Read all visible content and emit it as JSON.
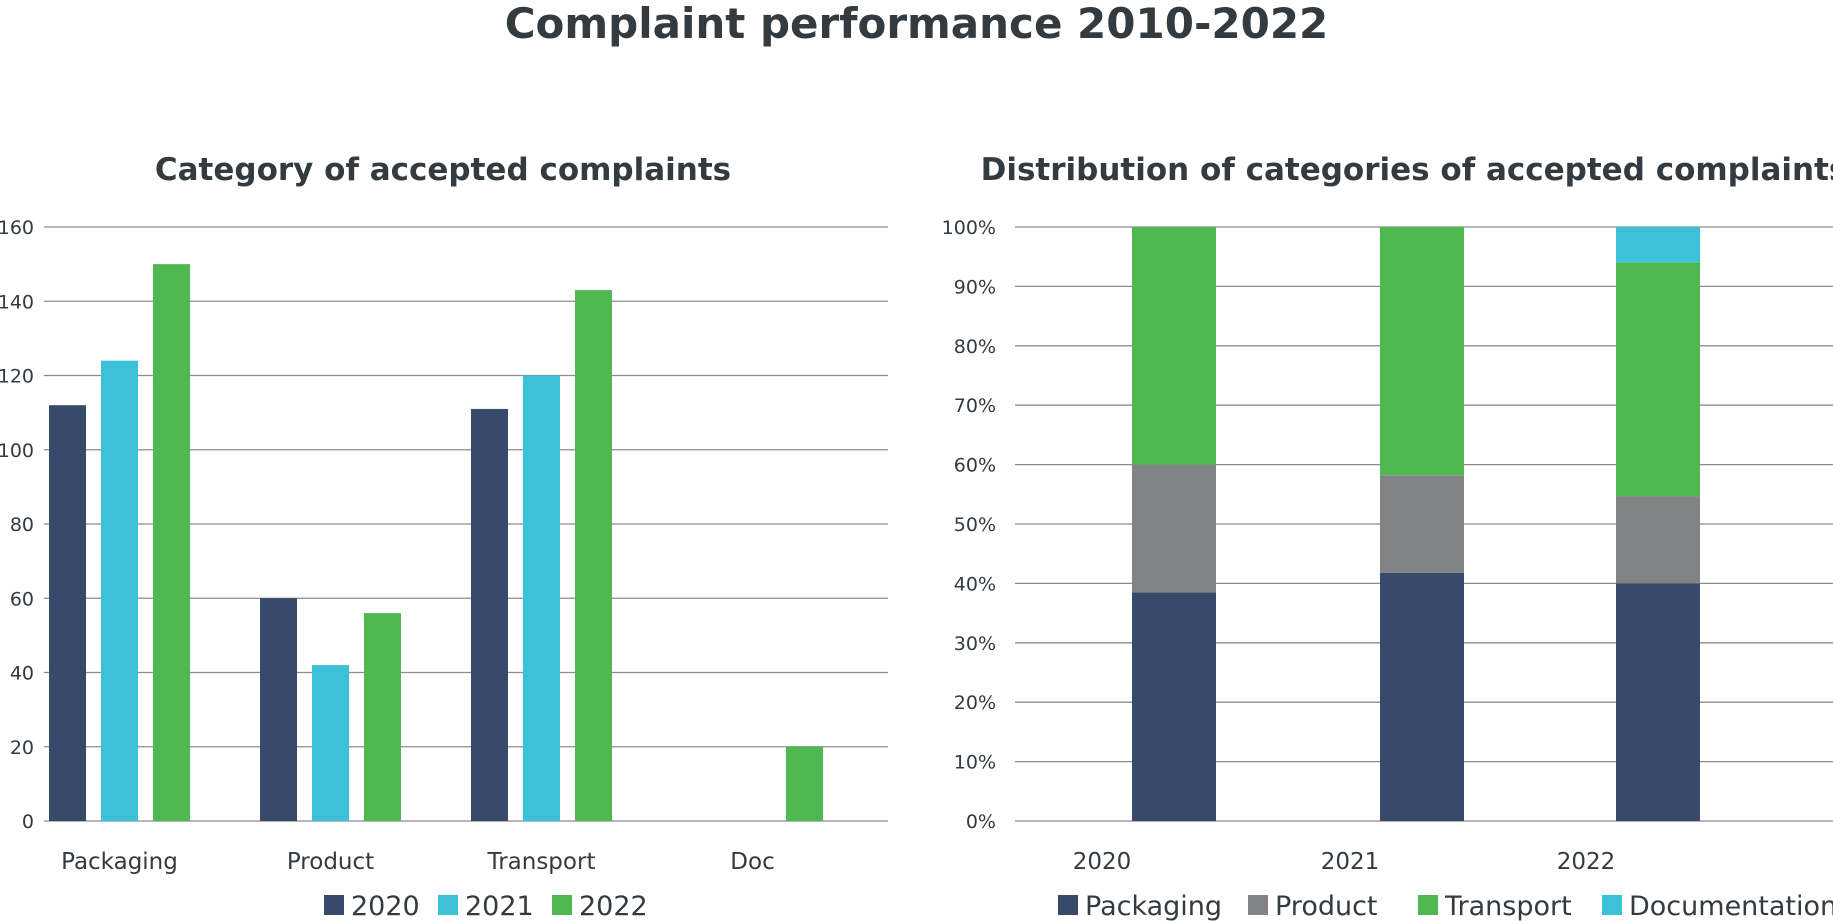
{
  "title": "Complaint performance 2010-2022",
  "colors": {
    "packaging_2020": "#384a69",
    "year2021": "#3bc1d8",
    "year2022": "#50b850",
    "product": "#828385",
    "grid": "#8c8c8c",
    "text": "#333b40"
  },
  "chart_data": [
    {
      "type": "bar",
      "title": "Category of accepted complaints",
      "categories": [
        "Packaging",
        "Product",
        "Transport",
        "Doc"
      ],
      "series": [
        {
          "name": "2020",
          "color": "#384a69",
          "values": [
            112,
            60,
            111,
            0
          ]
        },
        {
          "name": "2021",
          "color": "#3bc1d8",
          "values": [
            124,
            42,
            120,
            0
          ]
        },
        {
          "name": "2022",
          "color": "#50b850",
          "values": [
            150,
            56,
            143,
            20
          ]
        }
      ],
      "yticks": [
        "0",
        "20",
        "40",
        "60",
        "80",
        "100",
        "120",
        "140",
        "160"
      ],
      "ylim": [
        0,
        160
      ],
      "xlabel": "",
      "ylabel": "",
      "grid": true,
      "legend": "bottom"
    },
    {
      "type": "bar",
      "stacked": true,
      "title": "Distribution of categories of accepted complaints",
      "categories": [
        "2020",
        "2021",
        "2022"
      ],
      "series": [
        {
          "name": "Packaging",
          "color": "#384a69",
          "values": [
            38.5,
            41.8,
            40.0
          ]
        },
        {
          "name": "Product",
          "color": "#828385",
          "values": [
            21.5,
            16.4,
            14.7
          ]
        },
        {
          "name": "Transport",
          "color": "#50b850",
          "values": [
            40.0,
            41.8,
            39.3
          ]
        },
        {
          "name": "Documentation",
          "color": "#3bc1d8",
          "values": [
            0,
            0,
            6.0
          ]
        }
      ],
      "yticks": [
        "0%",
        "10%",
        "20%",
        "30%",
        "40%",
        "50%",
        "60%",
        "70%",
        "80%",
        "90%",
        "100%"
      ],
      "ylim": [
        0,
        100
      ],
      "xlabel": "",
      "ylabel": "",
      "grid": true,
      "legend": "bottom"
    }
  ]
}
